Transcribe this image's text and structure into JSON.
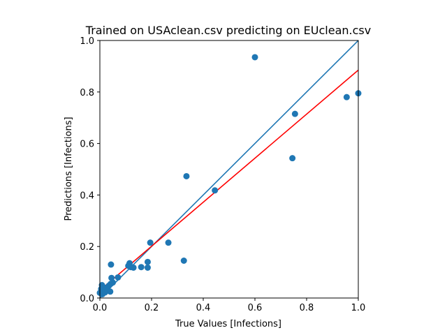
{
  "chart_data": {
    "type": "scatter",
    "title": "Trained on USAclean.csv predicting on EUclean.csv",
    "xlabel": "True Values [Infections]",
    "ylabel": "Predictions [Infections]",
    "xlim": [
      0.0,
      1.0
    ],
    "ylim": [
      0.0,
      1.0
    ],
    "xticks": [
      "0.0",
      "0.2",
      "0.4",
      "0.6",
      "0.8",
      "1.0"
    ],
    "yticks": [
      "0.0",
      "0.2",
      "0.4",
      "0.6",
      "0.8",
      "1.0"
    ],
    "grid": false,
    "points_color": "#1f77b4",
    "points": [
      {
        "x": 0.0,
        "y": 0.02
      },
      {
        "x": 0.005,
        "y": 0.035
      },
      {
        "x": 0.008,
        "y": 0.05
      },
      {
        "x": 0.01,
        "y": 0.015
      },
      {
        "x": 0.012,
        "y": 0.028
      },
      {
        "x": 0.018,
        "y": 0.04
      },
      {
        "x": 0.02,
        "y": 0.022
      },
      {
        "x": 0.03,
        "y": 0.03
      },
      {
        "x": 0.035,
        "y": 0.048
      },
      {
        "x": 0.04,
        "y": 0.025
      },
      {
        "x": 0.042,
        "y": 0.055
      },
      {
        "x": 0.043,
        "y": 0.13
      },
      {
        "x": 0.045,
        "y": 0.078
      },
      {
        "x": 0.05,
        "y": 0.06
      },
      {
        "x": 0.07,
        "y": 0.08
      },
      {
        "x": 0.11,
        "y": 0.125
      },
      {
        "x": 0.115,
        "y": 0.135
      },
      {
        "x": 0.12,
        "y": 0.12
      },
      {
        "x": 0.13,
        "y": 0.118
      },
      {
        "x": 0.16,
        "y": 0.12
      },
      {
        "x": 0.185,
        "y": 0.14
      },
      {
        "x": 0.185,
        "y": 0.118
      },
      {
        "x": 0.195,
        "y": 0.215
      },
      {
        "x": 0.265,
        "y": 0.215
      },
      {
        "x": 0.325,
        "y": 0.145
      },
      {
        "x": 0.335,
        "y": 0.473
      },
      {
        "x": 0.445,
        "y": 0.418
      },
      {
        "x": 0.6,
        "y": 0.935
      },
      {
        "x": 0.745,
        "y": 0.543
      },
      {
        "x": 0.755,
        "y": 0.715
      },
      {
        "x": 0.955,
        "y": 0.78
      },
      {
        "x": 1.0,
        "y": 0.795
      }
    ],
    "lines": [
      {
        "color": "#1f77b4",
        "x": [
          0.0,
          1.0
        ],
        "y": [
          0.0,
          1.0
        ]
      },
      {
        "color": "#ff0000",
        "x": [
          0.0,
          1.0
        ],
        "y": [
          0.03,
          0.885
        ]
      }
    ]
  }
}
